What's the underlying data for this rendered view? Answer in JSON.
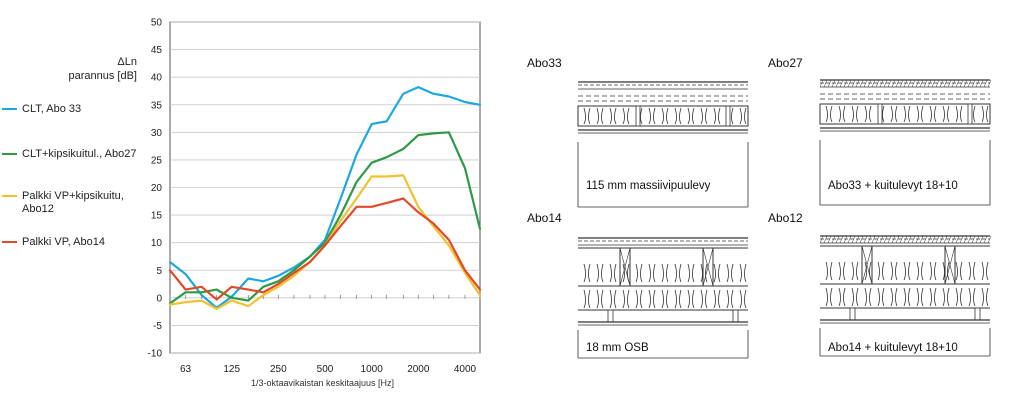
{
  "chart_data": {
    "type": "line",
    "title": "",
    "ylabel_symbol": "ΔLn",
    "ylabel_text": "parannus [dB]",
    "xlabel": "1/3-oktaavikaistan  keskitaajuus  [Hz]",
    "ylim": [
      -10,
      50
    ],
    "yticks": [
      -10,
      -5,
      0,
      5,
      10,
      15,
      20,
      25,
      30,
      35,
      40,
      45,
      50
    ],
    "x_log": true,
    "xlim": [
      50,
      5000
    ],
    "xtick_labels": [
      "63",
      "125",
      "250",
      "500",
      "1000",
      "2000",
      "4000"
    ],
    "x": [
      50,
      63,
      80,
      100,
      125,
      160,
      200,
      250,
      315,
      400,
      500,
      630,
      800,
      1000,
      1250,
      1600,
      2000,
      2500,
      3150,
      4000,
      5000
    ],
    "series": [
      {
        "name": "CLT, Abo 33",
        "color": "#1ea8e0",
        "values": [
          6.5,
          4.3,
          0.5,
          -1.8,
          0.2,
          3.5,
          3.0,
          4.0,
          5.5,
          7.5,
          10.5,
          18.0,
          26.0,
          31.5,
          32.0,
          37.0,
          38.2,
          37.0,
          36.5,
          35.5,
          35.0
        ]
      },
      {
        "name": "CLT+kipsikuitul., Abo27",
        "color": "#2e9a45",
        "values": [
          -1.0,
          1.0,
          1.0,
          1.5,
          0.0,
          -0.5,
          2.0,
          3.0,
          5.0,
          7.5,
          10.0,
          15.0,
          21.0,
          24.5,
          25.5,
          27.0,
          29.5,
          29.8,
          30.0,
          23.5,
          12.5
        ]
      },
      {
        "name": "Palkki VP+kipsikuitu, Abo12",
        "color": "#f2c12e",
        "values": [
          -1.2,
          -0.8,
          -0.5,
          -2.0,
          -0.5,
          -1.5,
          0.5,
          2.0,
          4.0,
          6.5,
          9.5,
          14.0,
          18.0,
          22.0,
          22.0,
          22.2,
          16.5,
          13.0,
          9.5,
          4.5,
          0.5
        ]
      },
      {
        "name": "Palkki VP, Abo14",
        "color": "#e04a2a",
        "values": [
          5.0,
          1.5,
          2.0,
          -0.3,
          2.0,
          1.5,
          1.0,
          2.5,
          4.5,
          6.5,
          9.5,
          13.0,
          16.5,
          16.5,
          17.2,
          18.0,
          15.5,
          13.5,
          10.5,
          5.0,
          1.5
        ]
      }
    ]
  },
  "details": [
    {
      "id": "abo33",
      "title": "Abo33",
      "caption": "115 mm massiivipuulevy"
    },
    {
      "id": "abo27",
      "title": "Abo27",
      "caption": "Abo33 + kuitulevyt 18+10"
    },
    {
      "id": "abo14",
      "title": "Abo14",
      "caption": "18 mm OSB"
    },
    {
      "id": "abo12",
      "title": "Abo12",
      "caption": "Abo14 + kuitulevyt 18+10"
    }
  ]
}
